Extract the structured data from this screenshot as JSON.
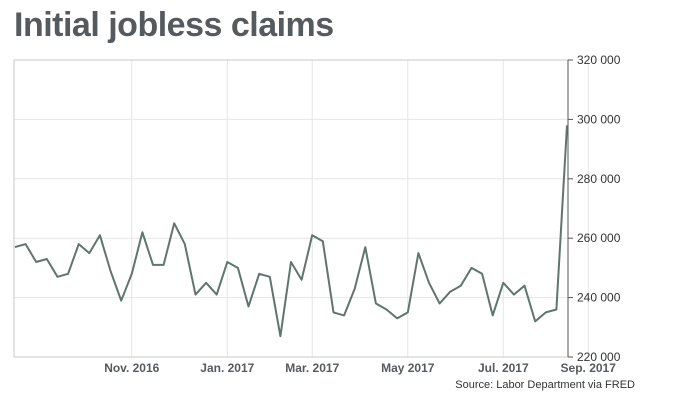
{
  "chart_data": {
    "type": "line",
    "title": "Initial jobless claims",
    "source": "Source: Labor Department via FRED",
    "xlabel": "",
    "ylabel": "",
    "ylim": [
      220000,
      320000
    ],
    "y_ticks": [
      220000,
      240000,
      260000,
      280000,
      300000,
      320000
    ],
    "y_tick_labels": [
      "220 000",
      "240 000",
      "260 000",
      "280 000",
      "300 000",
      "320 000"
    ],
    "x_ticks": [
      {
        "label": "Nov. 2016",
        "index": 11
      },
      {
        "label": "Jan. 2017",
        "index": 20
      },
      {
        "label": "Mar. 2017",
        "index": 28
      },
      {
        "label": "May 2017",
        "index": 37
      },
      {
        "label": "Jul. 2017",
        "index": 46
      },
      {
        "label": "Sep. 2017",
        "index": 54
      }
    ],
    "grid": true,
    "line_color": "#5e7570",
    "series": [
      {
        "values": [
          257000,
          258000,
          252000,
          253000,
          247000,
          248000,
          258000,
          255000,
          261000,
          249000,
          239000,
          248000,
          262000,
          251000,
          251000,
          265000,
          258000,
          241000,
          245000,
          241000,
          252000,
          250000,
          237000,
          248000,
          247000,
          227000,
          252000,
          246000,
          261000,
          259000,
          235000,
          234000,
          243000,
          257000,
          238000,
          236000,
          233000,
          235000,
          255000,
          245000,
          238000,
          242000,
          244000,
          250000,
          248000,
          234000,
          245000,
          241000,
          244000,
          232000,
          235000,
          236000,
          298000
        ]
      }
    ]
  }
}
